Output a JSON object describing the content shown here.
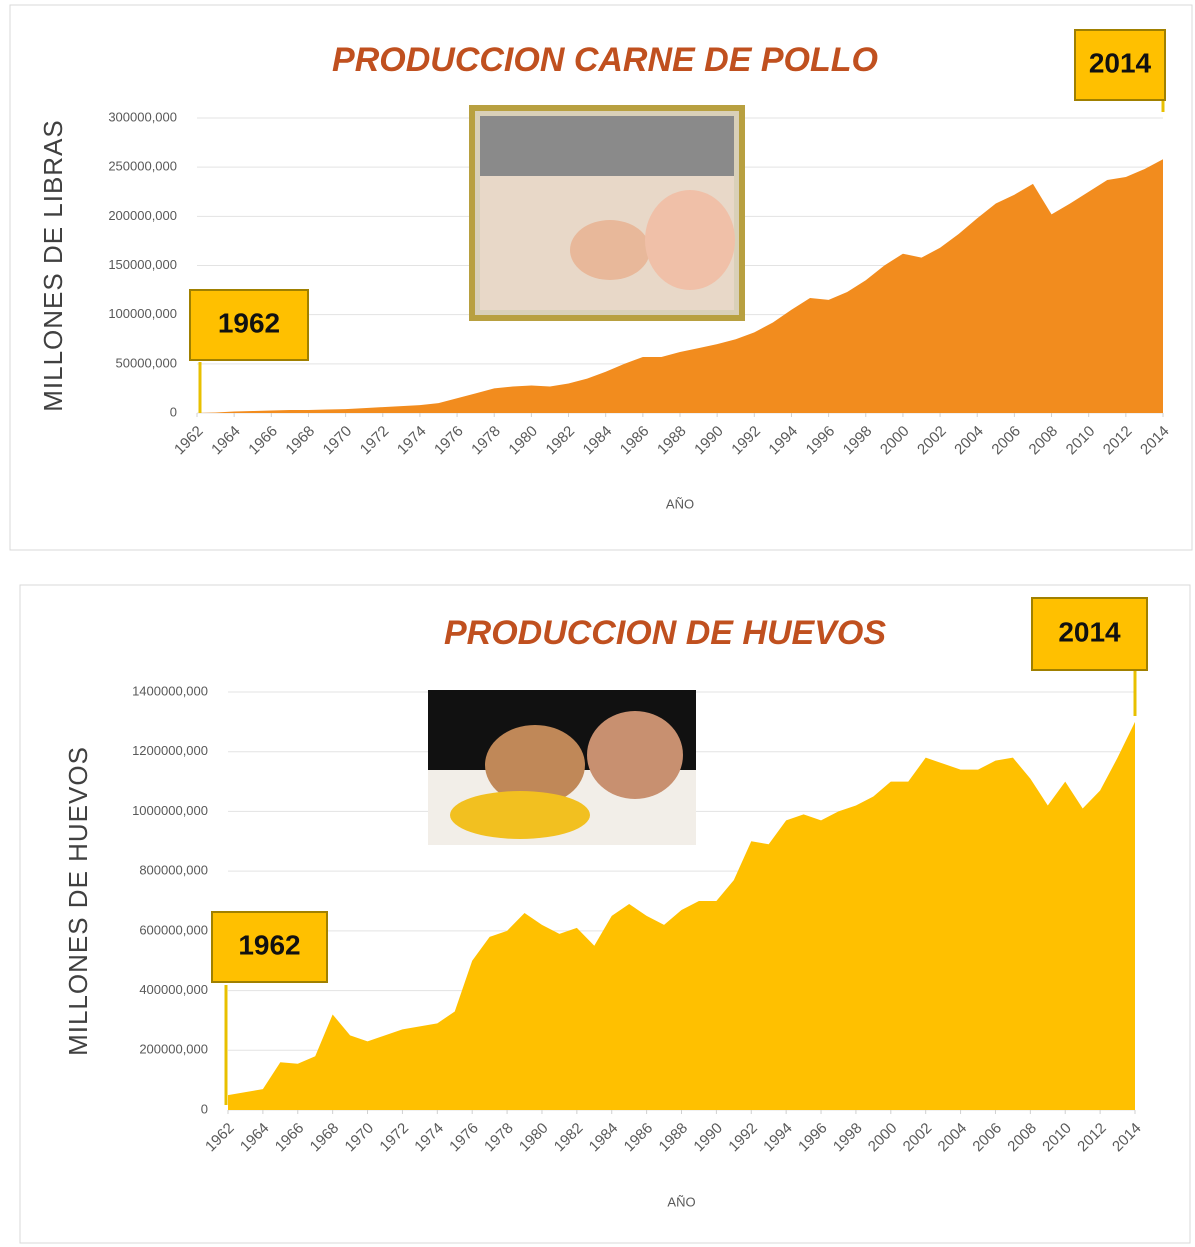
{
  "chart_data": [
    {
      "type": "area",
      "title": "PRODUCCION CARNE DE POLLO",
      "xlabel": "AÑO",
      "ylabel": "MILLONES DE LIBRAS",
      "annotations": [
        "1962",
        "2014"
      ],
      "color": "#f28c1e",
      "grid": true,
      "x": [
        1962,
        1963,
        1964,
        1965,
        1966,
        1967,
        1968,
        1969,
        1970,
        1971,
        1972,
        1973,
        1974,
        1975,
        1976,
        1977,
        1978,
        1979,
        1980,
        1981,
        1982,
        1983,
        1984,
        1985,
        1986,
        1987,
        1988,
        1989,
        1990,
        1991,
        1992,
        1993,
        1994,
        1995,
        1996,
        1997,
        1998,
        1999,
        2000,
        2001,
        2002,
        2003,
        2004,
        2005,
        2006,
        2007,
        2008,
        2009,
        2010,
        2011,
        2012,
        2013,
        2014
      ],
      "values": [
        0,
        500,
        1500,
        2000,
        2500,
        3000,
        3000,
        3500,
        4000,
        5000,
        6000,
        7000,
        8000,
        10000,
        15000,
        20000,
        25000,
        27000,
        28000,
        27000,
        30000,
        35000,
        42000,
        50000,
        57000,
        57000,
        62000,
        66000,
        70000,
        75000,
        82000,
        92000,
        105000,
        117000,
        115000,
        123000,
        135000,
        150000,
        162000,
        158000,
        168000,
        182000,
        198000,
        213000,
        222000,
        233000,
        202000,
        213000,
        225000,
        237000,
        240000,
        248000,
        258000
      ],
      "xlim": [
        1962,
        2014
      ],
      "xticks": [
        1962,
        1964,
        1966,
        1968,
        1970,
        1972,
        1974,
        1976,
        1978,
        1980,
        1982,
        1984,
        1986,
        1988,
        1990,
        1992,
        1994,
        1996,
        1998,
        2000,
        2002,
        2004,
        2006,
        2008,
        2010,
        2012,
        2014
      ],
      "ylim": [
        0,
        300000
      ],
      "yticks": [
        0,
        {
          "value": 50000,
          "label": "50000,000"
        },
        {
          "value": 100000,
          "label": "100000,000"
        },
        {
          "value": 150000,
          "label": "150000,000"
        },
        {
          "value": 200000,
          "label": "200000,000"
        },
        {
          "value": 250000,
          "label": "250000,000"
        },
        {
          "value": 300000,
          "label": "300000,000"
        }
      ]
    },
    {
      "type": "area",
      "title": "PRODUCCION DE HUEVOS",
      "xlabel": "AÑO",
      "ylabel": "MILLONES DE HUEVOS",
      "annotations": [
        "1962",
        "2014"
      ],
      "color": "#ffc000",
      "grid": true,
      "x": [
        1962,
        1963,
        1964,
        1965,
        1966,
        1967,
        1968,
        1969,
        1970,
        1971,
        1972,
        1973,
        1974,
        1975,
        1976,
        1977,
        1978,
        1979,
        1980,
        1981,
        1982,
        1983,
        1984,
        1985,
        1986,
        1987,
        1988,
        1989,
        1990,
        1991,
        1992,
        1993,
        1994,
        1995,
        1996,
        1997,
        1998,
        1999,
        2000,
        2001,
        2002,
        2003,
        2004,
        2005,
        2006,
        2007,
        2008,
        2009,
        2010,
        2011,
        2012,
        2013,
        2014
      ],
      "values": [
        50000,
        60000,
        70000,
        160000,
        155000,
        180000,
        320000,
        250000,
        230000,
        250000,
        270000,
        280000,
        290000,
        330000,
        500000,
        580000,
        600000,
        660000,
        620000,
        590000,
        610000,
        550000,
        650000,
        690000,
        650000,
        620000,
        670000,
        700000,
        700000,
        770000,
        900000,
        890000,
        970000,
        990000,
        970000,
        1000000,
        1020000,
        1050000,
        1100000,
        1100000,
        1180000,
        1160000,
        1140000,
        1140000,
        1170000,
        1180000,
        1110000,
        1020000,
        1100000,
        1010000,
        1070000,
        1180000,
        1300000
      ],
      "xlim": [
        1962,
        2014
      ],
      "xticks": [
        1962,
        1964,
        1966,
        1968,
        1970,
        1972,
        1974,
        1976,
        1978,
        1980,
        1982,
        1984,
        1986,
        1988,
        1990,
        1992,
        1994,
        1996,
        1998,
        2000,
        2002,
        2004,
        2006,
        2008,
        2010,
        2012,
        2014
      ],
      "ylim": [
        0,
        1400000
      ],
      "yticks": [
        0,
        {
          "value": 200000,
          "label": "200000,000"
        },
        {
          "value": 400000,
          "label": "400000,000"
        },
        {
          "value": 600000,
          "label": "600000,000"
        },
        {
          "value": 800000,
          "label": "800000,000"
        },
        {
          "value": 1000000,
          "label": "1000000,000"
        },
        {
          "value": 1200000,
          "label": "1200000,000"
        },
        {
          "value": 1400000,
          "label": "1400000,000"
        }
      ]
    }
  ]
}
